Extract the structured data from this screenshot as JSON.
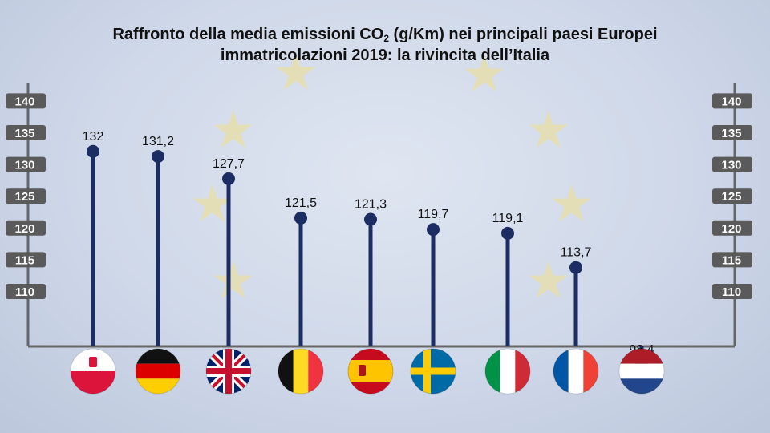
{
  "title": {
    "line1_before": "Raffronto della media emissioni CO",
    "line1_sub": "2",
    "line1_after": " (g/Km) nei principali paesi Europei",
    "line2": "immatricolazioni 2019: la rivincita dell’Italia"
  },
  "colors": {
    "stem": "#1b2d63",
    "axis": "#666666",
    "tick_box": "#5a5a5a"
  },
  "chart_data": {
    "type": "lollipop",
    "title": "Raffronto della media emissioni CO2 (g/Km) nei principali paesi Europei immatricolazioni 2019: la rivincita dell’Italia",
    "categories": [
      "Polonia",
      "Germania",
      "Regno Unito",
      "Belgio",
      "Spagna",
      "Svezia",
      "Italia",
      "Francia",
      "Paesi Bassi"
    ],
    "category_icons": [
      "flag-poland",
      "flag-germany",
      "flag-uk",
      "flag-belgium",
      "flag-spain",
      "flag-sweden",
      "flag-italy",
      "flag-france",
      "flag-netherlands"
    ],
    "values": [
      132,
      131.2,
      127.7,
      121.5,
      121.3,
      119.7,
      119.1,
      113.7,
      98.4
    ],
    "value_labels": [
      "132",
      "131,2",
      "127,7",
      "121,5",
      "121,3",
      "119,7",
      "119,1",
      "113,7",
      "98,4"
    ],
    "y_ticks": [
      "110",
      "115",
      "120",
      "125",
      "130",
      "135",
      "140"
    ],
    "y_tick_values": [
      110,
      115,
      120,
      125,
      130,
      135,
      140
    ],
    "axes": "left-and-right",
    "grid": false,
    "legend": "none"
  }
}
